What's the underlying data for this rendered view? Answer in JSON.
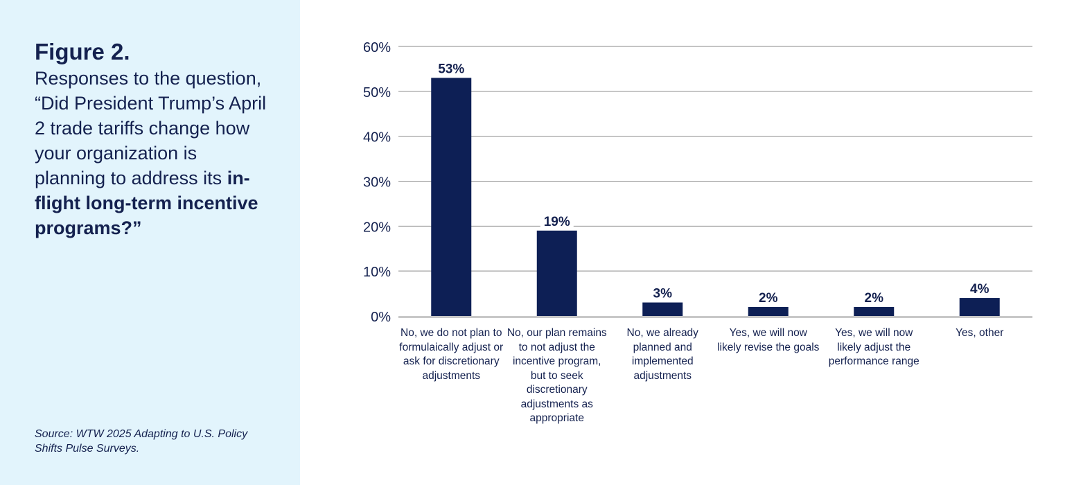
{
  "figure": {
    "label": "Figure 2.",
    "caption_plain": "Responses to the question, “Did President Trump’s April 2 trade tariffs change how your organization is planning to address its ",
    "caption_bold": "in-flight long-term incentive programs?”",
    "source": "Source: WTW 2025 Adapting to U.S. Policy Shifts Pulse Surveys."
  },
  "colors": {
    "panel_bg": "#e2f4fc",
    "bar": "#0d1f55",
    "text": "#14214f",
    "grid": "#8a8a8a",
    "baseline": "#c8c8c8"
  },
  "chart_data": {
    "type": "bar",
    "title": "",
    "xlabel": "",
    "ylabel": "",
    "ylim": [
      0,
      60
    ],
    "yticks": [
      "0%",
      "10%",
      "20%",
      "30%",
      "40%",
      "50%",
      "60%"
    ],
    "ytick_values": [
      0,
      10,
      20,
      30,
      40,
      50,
      60
    ],
    "grid": true,
    "categories": [
      "No, we do not plan to formulaically adjust or ask for discretionary adjustments",
      "No, our plan remains to not adjust the incentive program, but to seek discretionary adjustments as appropriate",
      "No, we already planned and implemented adjustments",
      "Yes, we will now likely revise the goals",
      "Yes, we will now likely adjust the performance range",
      "Yes, other"
    ],
    "values": [
      53,
      19,
      3,
      2,
      2,
      4
    ],
    "data_labels": [
      "53%",
      "19%",
      "3%",
      "2%",
      "2%",
      "4%"
    ]
  }
}
